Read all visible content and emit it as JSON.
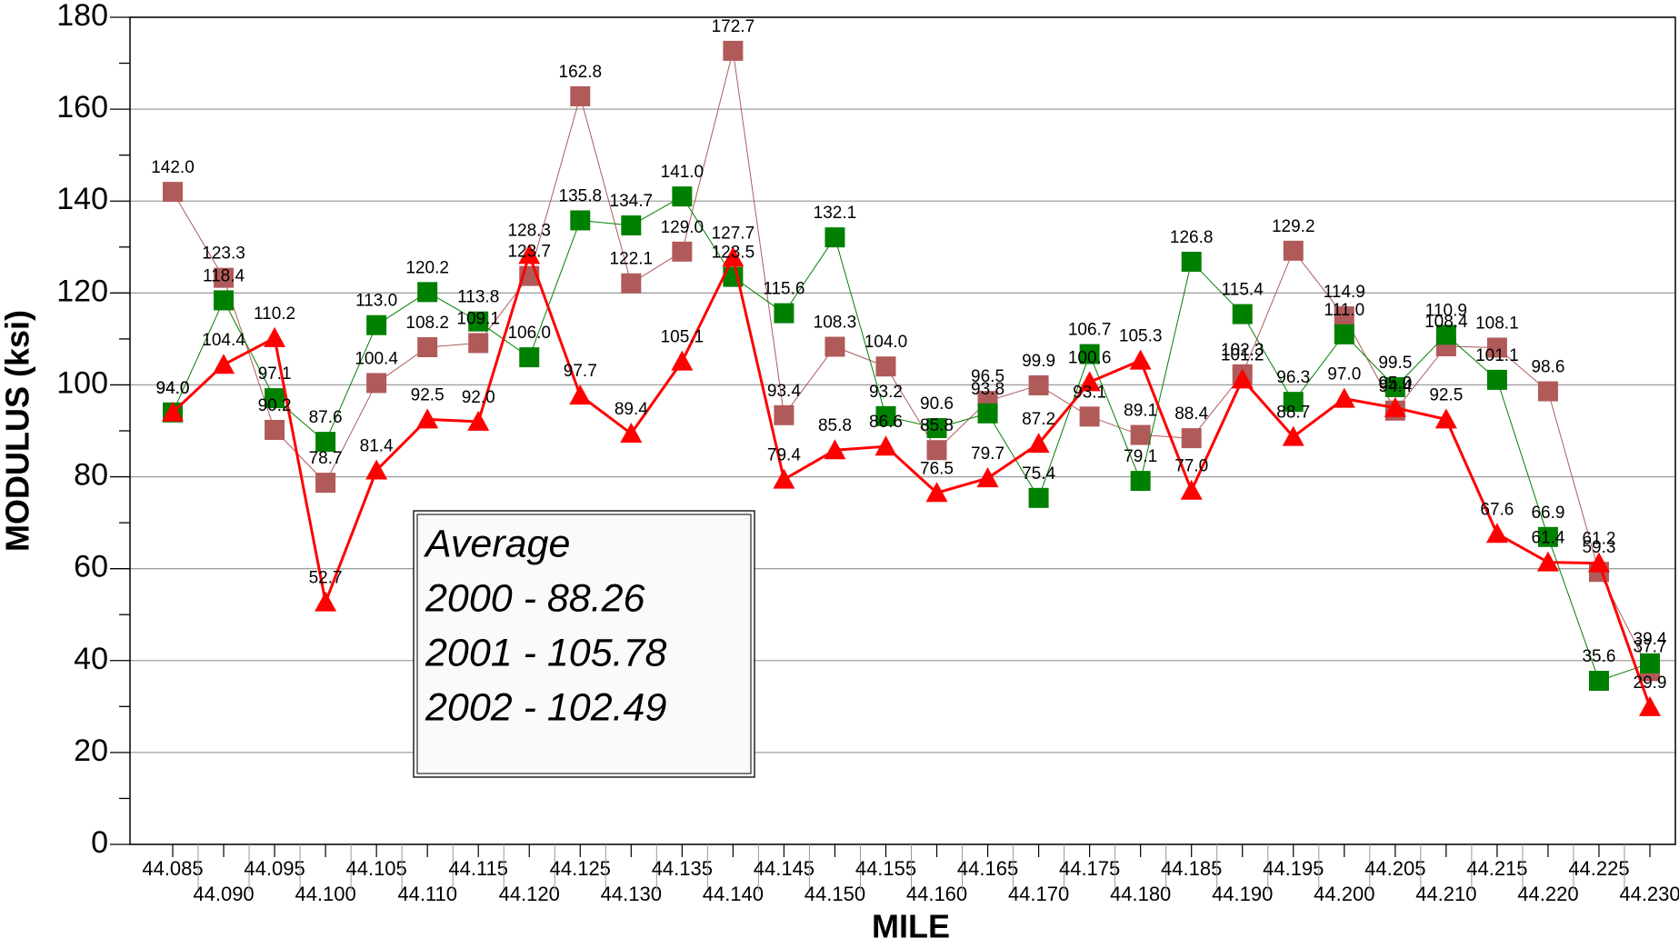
{
  "chart_data": {
    "type": "line",
    "x_label": "MILE",
    "y_label": "MODULUS (ksi)",
    "categories": [
      "44.085",
      "44.090",
      "44.095",
      "44.100",
      "44.105",
      "44.110",
      "44.115",
      "44.120",
      "44.125",
      "44.130",
      "44.135",
      "44.140",
      "44.145",
      "44.150",
      "44.155",
      "44.160",
      "44.165",
      "44.170",
      "44.175",
      "44.180",
      "44.185",
      "44.190",
      "44.195",
      "44.200",
      "44.205",
      "44.210",
      "44.215",
      "44.220",
      "44.225",
      "44.230"
    ],
    "ylim": [
      0,
      180
    ],
    "yticks": [
      0,
      20,
      40,
      60,
      80,
      100,
      120,
      140,
      160,
      180
    ],
    "grid": true,
    "annotation": [
      "Average",
      "2000 - 88.26",
      "2001 - 105.78",
      "2002 - 102.49"
    ],
    "series": [
      {
        "color": "#b05a5a",
        "marker": "square",
        "line_width": 1,
        "values": [
          142.0,
          123.3,
          90.2,
          78.7,
          100.4,
          108.2,
          109.1,
          123.7,
          162.8,
          122.1,
          129.0,
          172.7,
          93.4,
          108.3,
          104.0,
          85.8,
          96.5,
          99.9,
          93.1,
          89.1,
          88.4,
          102.3,
          129.2,
          114.9,
          94.4,
          108.4,
          108.1,
          98.6,
          59.3,
          37.7
        ],
        "value_labels": [
          "142.0",
          "123.3",
          "90.2",
          "78.7",
          "100.4",
          "108.2",
          "109.1",
          "123.7",
          "162.8",
          "122.1",
          "129.0",
          "172.7",
          "93.4",
          "108.3",
          "104.0",
          "85.8",
          "96.5",
          "99.9",
          "93.1",
          "89.1",
          "88.4",
          "102.3",
          "129.2",
          "114.9",
          "94.4",
          "108.4",
          "108.1",
          "98.6",
          "59.3",
          "37.7"
        ]
      },
      {
        "color": "#008000",
        "marker": "square",
        "line_width": 1,
        "values": [
          94.0,
          118.4,
          97.1,
          87.6,
          113.0,
          120.2,
          113.8,
          106.0,
          135.8,
          134.7,
          141.0,
          123.5,
          115.6,
          132.1,
          93.2,
          90.6,
          93.8,
          75.4,
          106.7,
          79.1,
          126.8,
          115.4,
          96.3,
          111.0,
          99.5,
          110.9,
          101.1,
          66.9,
          35.6,
          39.4
        ],
        "value_labels": [
          "94.0",
          "118.4",
          "97.1",
          "87.6",
          "113.0",
          "120.2",
          "113.8",
          "106.0",
          "135.8",
          "134.7",
          "141.0",
          "123.5",
          "115.6",
          "132.1",
          "93.2",
          "90.6",
          "93.8",
          "75.4",
          "106.7",
          "79.1",
          "126.8",
          "115.4",
          "96.3",
          "111.0",
          "99.5",
          "110.9",
          "101.1",
          "66.9",
          "35.6",
          "39.4"
        ]
      },
      {
        "color": "#ff0000",
        "marker": "triangle",
        "line_width": 3,
        "values": [
          94.0,
          104.4,
          110.2,
          52.7,
          81.4,
          92.5,
          92.0,
          128.3,
          97.7,
          89.4,
          105.1,
          127.7,
          79.4,
          85.8,
          86.6,
          76.5,
          79.7,
          87.2,
          100.6,
          105.3,
          77.0,
          101.2,
          88.7,
          97.0,
          95.0,
          92.5,
          67.6,
          61.4,
          61.2,
          29.9
        ],
        "value_labels": [
          "94.0",
          "104.4",
          "110.2",
          "52.7",
          "81.4",
          "92.5",
          "92.0",
          "128.3",
          "97.7",
          "89.4",
          "105.1",
          "127.7",
          "79.4",
          "85.8",
          "86.6",
          "76.5",
          "79.7",
          "87.2",
          "100.6",
          "105.3",
          "77.0",
          "101.2",
          "88.7",
          "97.0",
          "95.0",
          "92.5",
          "67.6",
          "61.4",
          "61.2",
          "29.9"
        ]
      }
    ]
  }
}
